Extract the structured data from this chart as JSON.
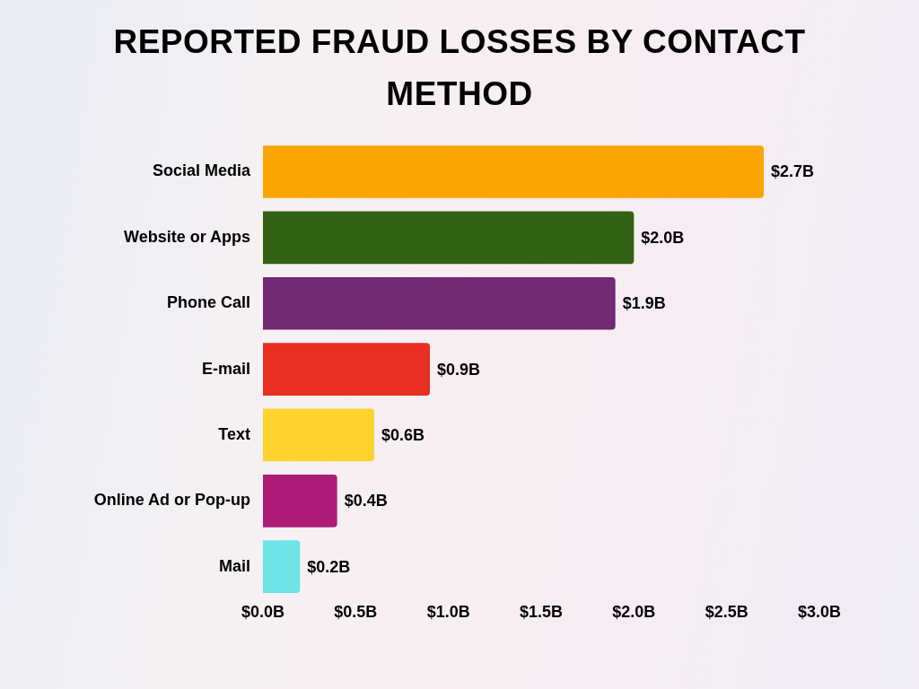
{
  "chart_data": {
    "type": "bar",
    "orientation": "horizontal",
    "title": "REPORTED FRAUD LOSSES BY CONTACT METHOD",
    "categories": [
      "Social Media",
      "Website or Apps",
      "Phone Call",
      "E-mail",
      "Text",
      "Online Ad or Pop-up",
      "Mail"
    ],
    "values": [
      2.7,
      2.0,
      1.9,
      0.9,
      0.6,
      0.4,
      0.2
    ],
    "colors": [
      "#fba504",
      "#336113",
      "#722a70",
      "#e83022",
      "#fed330",
      "#ad1c78",
      "#6ce3e6"
    ],
    "value_labels": [
      "$2.7B",
      "$2.0B",
      "$1.9B",
      "$0.9B",
      "$0.6B",
      "$0.4B",
      "$0.2B"
    ],
    "xlim": [
      0,
      3.0
    ],
    "xticks": [
      {
        "value": 0,
        "label": "$0.0B"
      },
      {
        "value": 0.5,
        "label": "$0.5B"
      },
      {
        "value": 1.0,
        "label": "$1.0B"
      },
      {
        "value": 1.5,
        "label": "$1.5B"
      },
      {
        "value": 2.0,
        "label": "$2.0B"
      },
      {
        "value": 2.5,
        "label": "$2.5B"
      },
      {
        "value": 3.0,
        "label": "$3.0B"
      }
    ]
  }
}
